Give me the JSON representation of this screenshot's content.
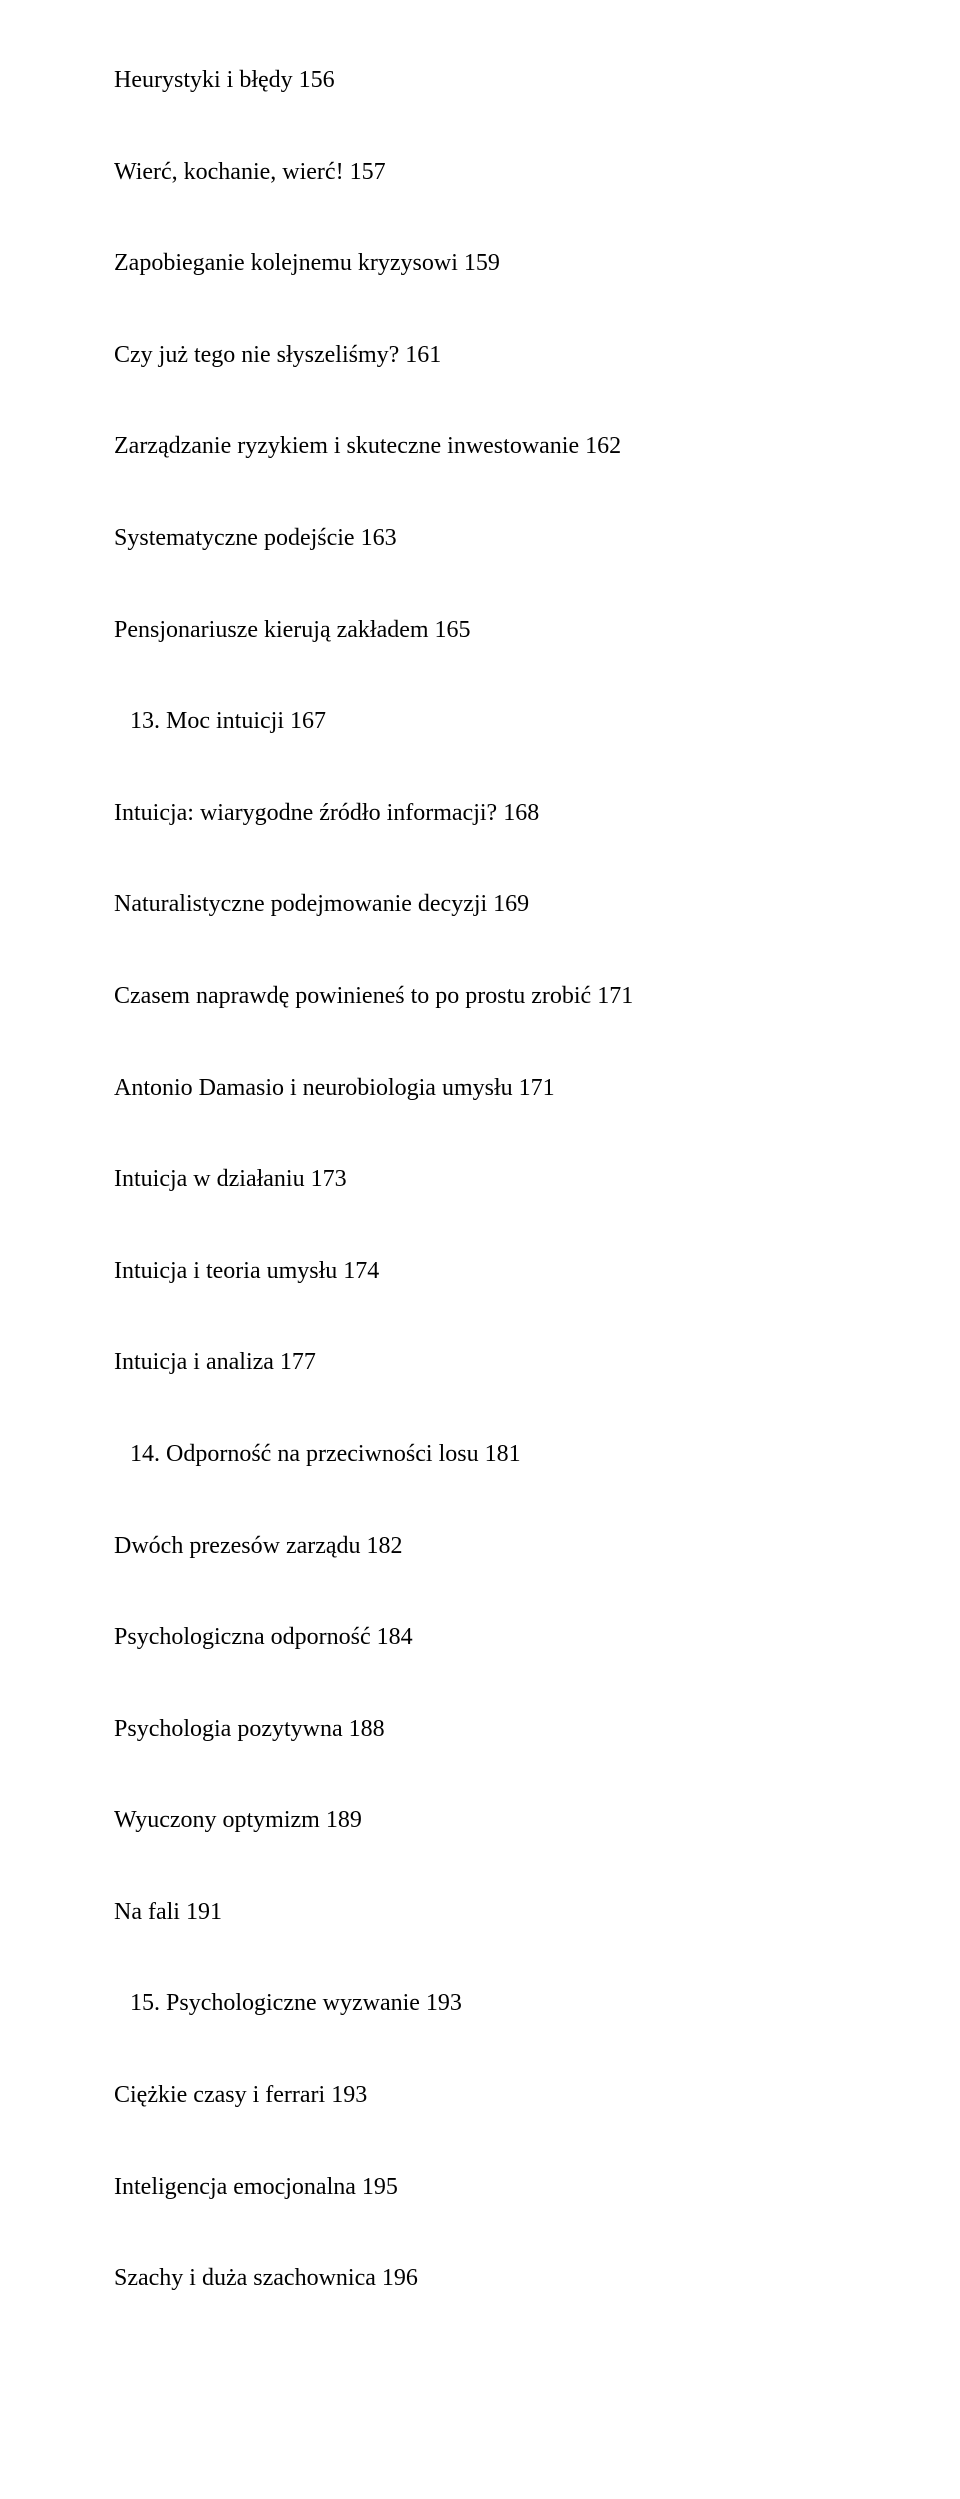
{
  "entries": [
    {
      "text": "Heurystyki i błędy 156",
      "indent": false
    },
    {
      "text": "Wierć, kochanie, wierć! 157",
      "indent": false
    },
    {
      "text": "Zapobieganie kolejnemu kryzysowi 159",
      "indent": false
    },
    {
      "text": "Czy już tego nie słyszeliśmy? 161",
      "indent": false
    },
    {
      "text": "Zarządzanie ryzykiem i skuteczne inwestowanie 162",
      "indent": false
    },
    {
      "text": "Systematyczne podejście 163",
      "indent": false
    },
    {
      "text": "Pensjonariusze kierują zakładem 165",
      "indent": false
    },
    {
      "text": "13. Moc intuicji 167",
      "indent": true
    },
    {
      "text": "Intuicja: wiarygodne źródło informacji? 168",
      "indent": false
    },
    {
      "text": "Naturalistyczne podejmowanie decyzji 169",
      "indent": false
    },
    {
      "text": "Czasem naprawdę powinieneś to po prostu zrobić 171",
      "indent": false
    },
    {
      "text": "Antonio Damasio i neurobiologia umysłu 171",
      "indent": false
    },
    {
      "text": "Intuicja w działaniu 173",
      "indent": false
    },
    {
      "text": "Intuicja i teoria umysłu 174",
      "indent": false
    },
    {
      "text": "Intuicja i analiza 177",
      "indent": false
    },
    {
      "text": "14. Odporność na przeciwności losu 181",
      "indent": true
    },
    {
      "text": "Dwóch prezesów zarządu 182",
      "indent": false
    },
    {
      "text": "Psychologiczna odporność 184",
      "indent": false
    },
    {
      "text": "Psychologia pozytywna 188",
      "indent": false
    },
    {
      "text": "Wyuczony optymizm 189",
      "indent": false
    },
    {
      "text": "Na fali 191",
      "indent": false
    },
    {
      "text": "15. Psychologiczne wyzwanie 193",
      "indent": true
    },
    {
      "text": "Ciężkie czasy i ferrari 193",
      "indent": false
    },
    {
      "text": "Inteligencja emocjonalna 195",
      "indent": false
    },
    {
      "text": "Szachy i duża szachownica 196",
      "indent": false
    }
  ]
}
